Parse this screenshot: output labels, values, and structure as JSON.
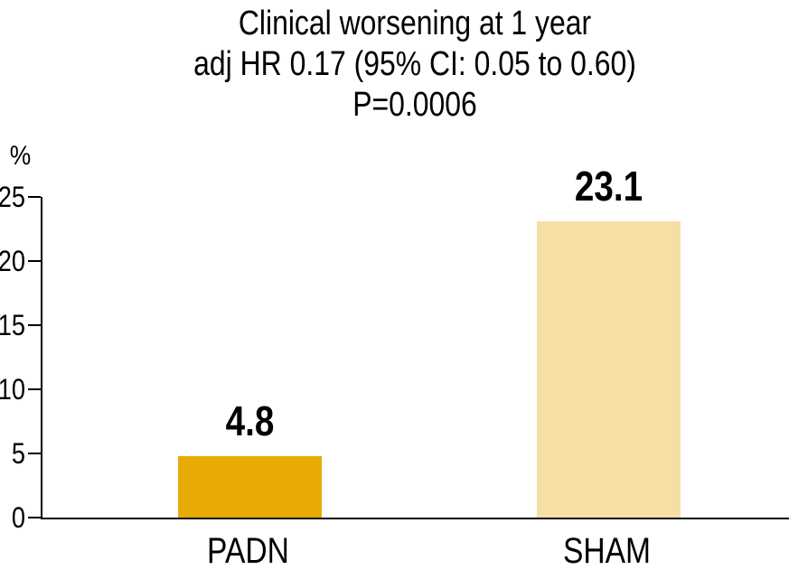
{
  "chart_data": {
    "type": "bar",
    "title_lines": [
      "Clinical worsening at 1 year",
      "adj HR 0.17 (95% CI: 0.05 to 0.60)",
      "P=0.0006"
    ],
    "categories": [
      "PADN",
      "SHAM"
    ],
    "values": [
      4.8,
      23.1
    ],
    "value_labels": [
      "4.8",
      "23.1"
    ],
    "bar_colors": [
      "#E8AB05",
      "#F6DFA5"
    ],
    "ylabel": "%",
    "ylim": [
      0,
      25
    ],
    "yticks": [
      "0",
      "5",
      "10",
      "15",
      "20",
      "25"
    ],
    "grid": false,
    "legend": false,
    "axis_color": "#000000",
    "text_color": "#000000"
  }
}
